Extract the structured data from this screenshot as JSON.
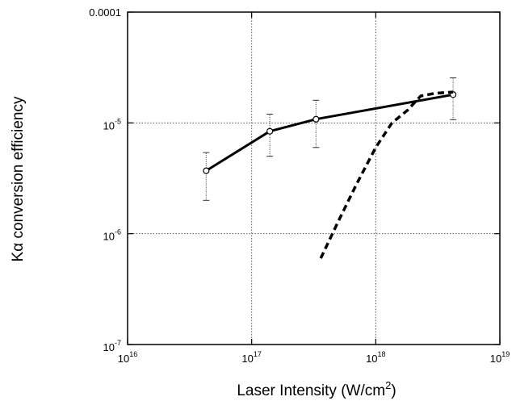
{
  "chart_data": {
    "type": "line",
    "title": "",
    "xlabel": {
      "base": "Laser Intensity (W/cm",
      "sup": "2",
      "tail": ")"
    },
    "ylabel": "Kα conversion efficiency",
    "x_scale": "log",
    "y_scale": "log",
    "xlim": [
      1e+16,
      1e+19
    ],
    "ylim": [
      1e-07,
      0.0001
    ],
    "grid": true,
    "grid_style": "dotted",
    "x_ticks": [
      {
        "value": 1e+16,
        "base": "10",
        "exp": "16"
      },
      {
        "value": 1e+17,
        "base": "10",
        "exp": "17"
      },
      {
        "value": 1e+18,
        "base": "10",
        "exp": "18"
      },
      {
        "value": 1e+19,
        "base": "10",
        "exp": "19"
      }
    ],
    "y_ticks": [
      {
        "value": 0.0001,
        "plain": "0.0001"
      },
      {
        "value": 1e-05,
        "base": "10",
        "exp": "-5"
      },
      {
        "value": 1e-06,
        "base": "10",
        "exp": "-6"
      },
      {
        "value": 1e-07,
        "base": "10",
        "exp": "-7"
      }
    ],
    "series": [
      {
        "style": "solid",
        "marker": "circle",
        "x": [
          4.3e+16,
          1.4e+17,
          3.3e+17,
          4.2e+18
        ],
        "y": [
          3.7e-06,
          8.4e-06,
          1.08e-05,
          1.8e-05
        ],
        "err_low": [
          2e-06,
          5e-06,
          6e-06,
          1.07e-05
        ],
        "err_high": [
          5.4e-06,
          1.2e-05,
          1.6e-05,
          2.55e-05
        ]
      },
      {
        "style": "dashed",
        "marker": "none",
        "x": [
          3.6e+17,
          5e+17,
          7e+17,
          1e+18,
          1.35e+18,
          1.8e+18,
          2.3e+18,
          3e+18,
          4.2e+18
        ],
        "y": [
          6e-07,
          1.3e-06,
          2.8e-06,
          6e-06,
          1e-05,
          1.3e-05,
          1.75e-05,
          1.85e-05,
          1.9e-05
        ]
      }
    ]
  }
}
